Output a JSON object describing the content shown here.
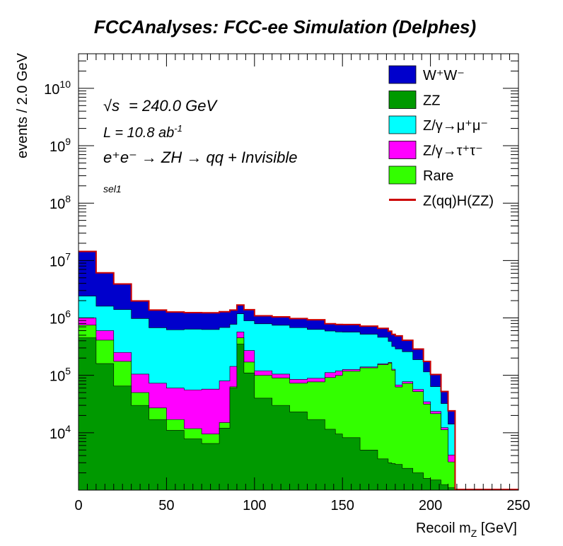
{
  "chart_data": {
    "type": "area",
    "title": "FCCAnalyses: FCC-ee Simulation (Delphes)",
    "xlabel": "Recoil m_{Z} [GeV]",
    "ylabel": "events / 2.0 GeV",
    "xlim": [
      0,
      250
    ],
    "ylim": [
      1000,
      40000000000
    ],
    "yscale": "log",
    "x_ticks": [
      "0",
      "50",
      "100",
      "150",
      "200",
      "250"
    ],
    "y_ticks": [
      {
        "base": "10",
        "exp": "4"
      },
      {
        "base": "10",
        "exp": "5"
      },
      {
        "base": "10",
        "exp": "6"
      },
      {
        "base": "10",
        "exp": "7"
      },
      {
        "base": "10",
        "exp": "8"
      },
      {
        "base": "10",
        "exp": "9"
      },
      {
        "base": "10",
        "exp": "10"
      }
    ],
    "grid": false,
    "legend_position": "top-right",
    "stacked": true,
    "x": [
      0,
      10,
      20,
      30,
      40,
      50,
      60,
      70,
      80,
      86,
      90,
      94,
      100,
      110,
      120,
      130,
      140,
      146,
      150,
      160,
      170,
      176,
      178,
      180,
      184,
      190,
      196,
      200,
      206,
      210
    ],
    "series": [
      {
        "name": "ZZ",
        "legend": "ZZ",
        "color": "#009900",
        "values": [
          450000,
          160000,
          65000,
          30000,
          17000,
          11000,
          7800,
          6500,
          12000,
          60000,
          350000,
          110000,
          40000,
          30000,
          23000,
          17000,
          11500,
          9500,
          8200,
          5000,
          3500,
          3000,
          2900,
          2800,
          2400,
          2000,
          1600,
          1500,
          1250,
          1100
        ]
      },
      {
        "name": "Rare",
        "legend": "Rare",
        "color": "#33ff00",
        "values": [
          300000,
          250000,
          110000,
          20000,
          10000,
          6000,
          4000,
          3000,
          3000,
          3000,
          100000,
          60000,
          60000,
          60000,
          50000,
          60000,
          80000,
          90000,
          110000,
          130000,
          150000,
          160000,
          120000,
          60000,
          70000,
          50000,
          30000,
          20000,
          10000,
          2000
        ]
      },
      {
        "name": "Z/gamma to tautau",
        "legend": "Z/γ→τ⁺τ⁻",
        "color": "#ff00ff",
        "values": [
          250000,
          190000,
          75000,
          55000,
          46000,
          43000,
          44000,
          48000,
          65000,
          80000,
          120000,
          100000,
          20000,
          15000,
          12000,
          12000,
          20000,
          20000,
          8000,
          5000,
          5000,
          5000,
          5000,
          5000,
          5000,
          5000,
          3000,
          2000,
          1000,
          1000
        ]
      },
      {
        "name": "Z/gamma to mumu",
        "legend": "Z/γ→μ⁺μ⁻",
        "color": "#00ffff",
        "values": [
          1400000,
          1000000,
          1150000,
          870000,
          600000,
          560000,
          580000,
          570000,
          600000,
          630000,
          610000,
          620000,
          670000,
          640000,
          590000,
          540000,
          480000,
          450000,
          440000,
          380000,
          300000,
          220000,
          190000,
          220000,
          180000,
          130000,
          80000,
          40000,
          20000,
          10000
        ]
      },
      {
        "name": "W+W-",
        "legend": "W⁺W⁻",
        "color": "#0000cc",
        "values": [
          12000000,
          4500000,
          2500000,
          1000000,
          700000,
          650000,
          600000,
          600000,
          600000,
          600000,
          500000,
          500000,
          300000,
          300000,
          300000,
          300000,
          200000,
          200000,
          200000,
          200000,
          200000,
          200000,
          200000,
          200000,
          150000,
          100000,
          60000,
          40000,
          20000,
          10000
        ]
      }
    ],
    "signal": {
      "name": "Z(qq)H(ZZ)",
      "legend": "Z(qq)H(ZZ)",
      "color": "#cc0000"
    },
    "legend_order": [
      "W+W-",
      "ZZ",
      "Z/gamma to mumu",
      "Z/gamma to tautau",
      "Rare",
      "signal"
    ],
    "annotations": {
      "sqrt_s_label": "= 240.0 GeV",
      "sqrt_symbol": "√s",
      "lumi_label": "L = 10.8 ab",
      "lumi_exp": "-1",
      "process_label": "e⁺e⁻ → ZH → qq + Invisible",
      "selection": "sel1"
    }
  }
}
